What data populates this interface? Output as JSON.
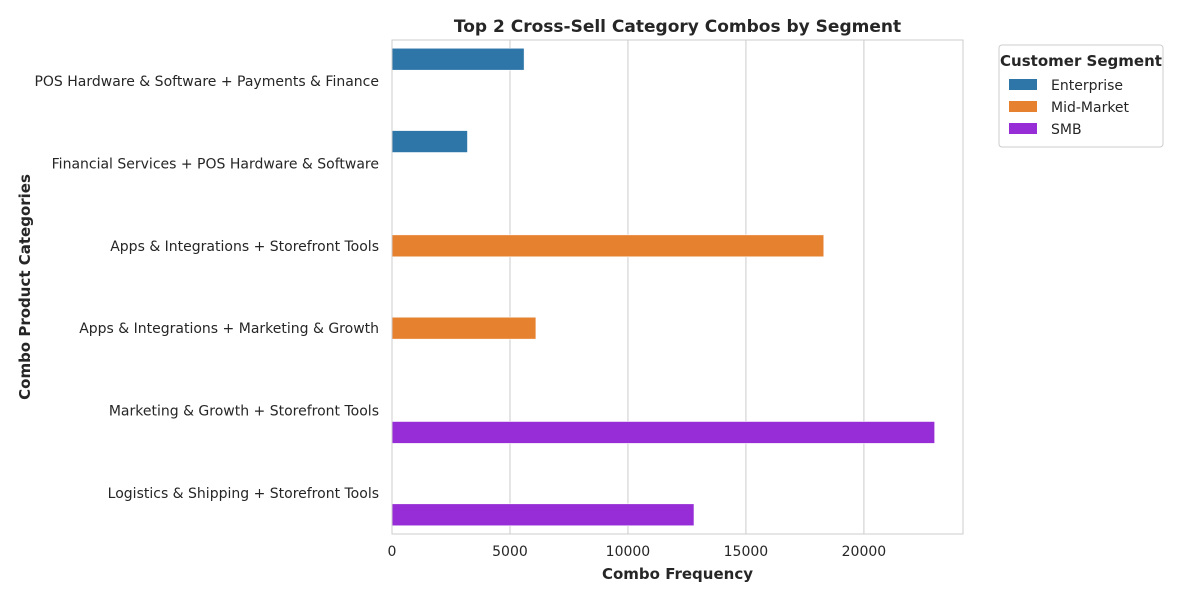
{
  "chart_data": {
    "type": "bar",
    "orientation": "horizontal",
    "title": "Top 2 Cross-Sell Category Combos by Segment",
    "xlabel": "Combo Frequency",
    "ylabel": "Combo Product Categories",
    "xlim": [
      0,
      24200
    ],
    "xticks": [
      0,
      5000,
      10000,
      15000,
      20000
    ],
    "grid": "vertical",
    "legend": {
      "title": "Customer Segment",
      "placement": "upper-right-outside"
    },
    "categories": [
      "POS Hardware & Software + Payments & Finance",
      "Financial Services + POS Hardware & Software",
      "Apps & Integrations + Storefront Tools",
      "Apps & Integrations + Marketing & Growth",
      "Marketing & Growth + Storefront Tools",
      "Logistics & Shipping + Storefront Tools"
    ],
    "series": [
      {
        "name": "Enterprise",
        "color": "#2e75a8",
        "values": [
          5600,
          3200,
          null,
          null,
          null,
          null
        ]
      },
      {
        "name": "Mid-Market",
        "color": "#e6812f",
        "values": [
          null,
          null,
          18300,
          6100,
          null,
          null
        ]
      },
      {
        "name": "SMB",
        "color": "#962dd6",
        "values": [
          null,
          null,
          null,
          null,
          23000,
          12800
        ]
      }
    ]
  }
}
